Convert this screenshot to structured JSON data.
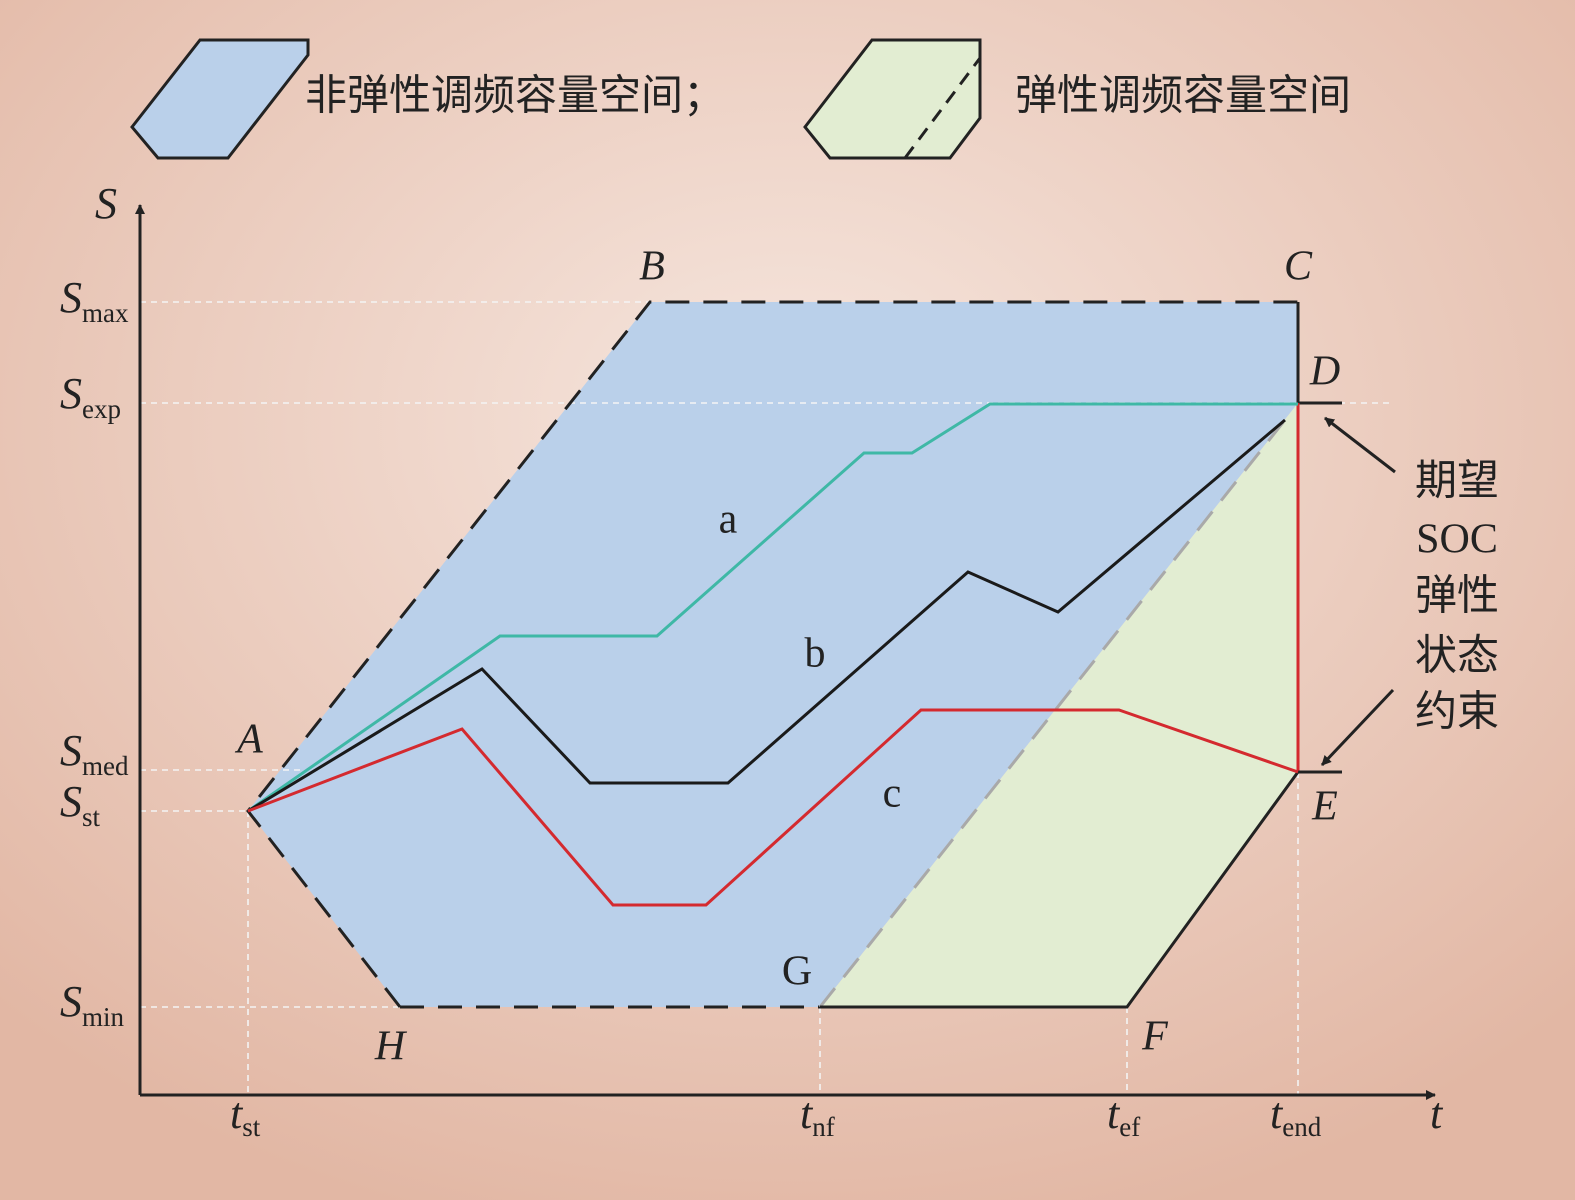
{
  "legend": {
    "items": [
      {
        "label": "非弹性调频容量空间；"
      },
      {
        "label": "弹性调频容量空间"
      }
    ]
  },
  "axes": {
    "y_label": "S",
    "x_label": "t",
    "y_ticks": [
      {
        "main": "S",
        "sub": "max"
      },
      {
        "main": "S",
        "sub": "exp"
      },
      {
        "main": "S",
        "sub": "med"
      },
      {
        "main": "S",
        "sub": "st"
      },
      {
        "main": "S",
        "sub": "min"
      }
    ],
    "x_ticks": [
      {
        "main": "t",
        "sub": "st"
      },
      {
        "main": "t",
        "sub": "nf"
      },
      {
        "main": "t",
        "sub": "ef"
      },
      {
        "main": "t",
        "sub": "end"
      }
    ]
  },
  "point_labels": [
    "A",
    "B",
    "C",
    "D",
    "E",
    "F",
    "G",
    "H"
  ],
  "curve_labels": [
    "a",
    "b",
    "c"
  ],
  "annotation": [
    "期望",
    "SOC",
    "弹性",
    "状态",
    "约束"
  ]
}
